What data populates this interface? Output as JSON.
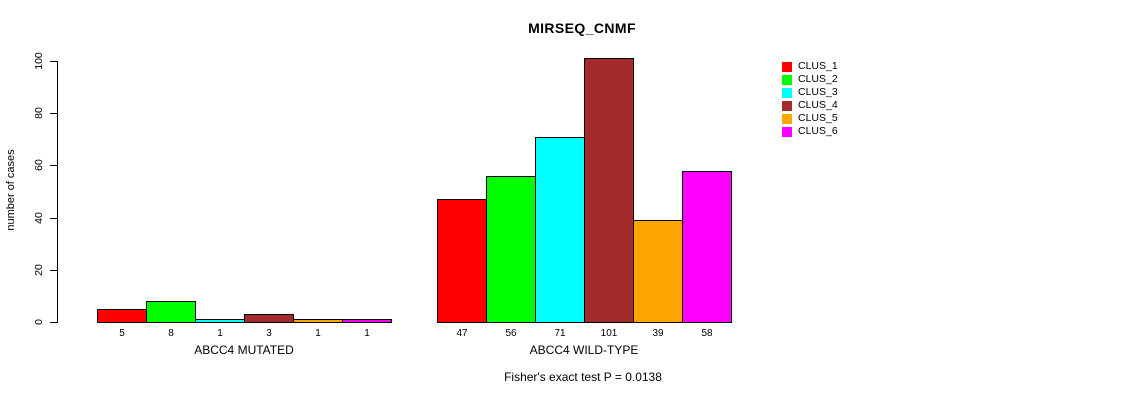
{
  "chart_data": {
    "type": "bar",
    "title": "MIRSEQ_CNMF",
    "ylabel": "number of cases",
    "xlabel": "",
    "ylim": [
      0,
      100
    ],
    "yticks": [
      0,
      20,
      40,
      60,
      80,
      100
    ],
    "grid": false,
    "bar_value_labels_shown": true,
    "groups": [
      {
        "label": "ABCC4 MUTATED",
        "values": [
          5,
          8,
          1,
          3,
          1,
          1
        ]
      },
      {
        "label": "ABCC4 WILD-TYPE",
        "values": [
          47,
          56,
          71,
          101,
          39,
          58
        ]
      }
    ],
    "series": [
      {
        "name": "CLUS_1",
        "color": "#FF0000",
        "values": [
          5,
          47
        ]
      },
      {
        "name": "CLUS_2",
        "color": "#00FF00",
        "values": [
          8,
          56
        ]
      },
      {
        "name": "CLUS_3",
        "color": "#00FFFF",
        "values": [
          1,
          71
        ]
      },
      {
        "name": "CLUS_4",
        "color": "#A52A2A",
        "values": [
          3,
          101
        ]
      },
      {
        "name": "CLUS_5",
        "color": "#FFA500",
        "values": [
          1,
          39
        ]
      },
      {
        "name": "CLUS_6",
        "color": "#FF00FF",
        "values": [
          1,
          58
        ]
      }
    ],
    "legend": {
      "position": "right",
      "entries": [
        {
          "label": "CLUS_1",
          "color": "#FF0000"
        },
        {
          "label": "CLUS_2",
          "color": "#00FF00"
        },
        {
          "label": "CLUS_3",
          "color": "#00FFFF"
        },
        {
          "label": "CLUS_4",
          "color": "#A52A2A"
        },
        {
          "label": "CLUS_5",
          "color": "#FFA500"
        },
        {
          "label": "CLUS_6",
          "color": "#FF00FF"
        }
      ]
    },
    "footnote": "Fisher's exact test P = 0.0138",
    "axis_color": "#000000",
    "background_color": "#FFFFFF"
  }
}
